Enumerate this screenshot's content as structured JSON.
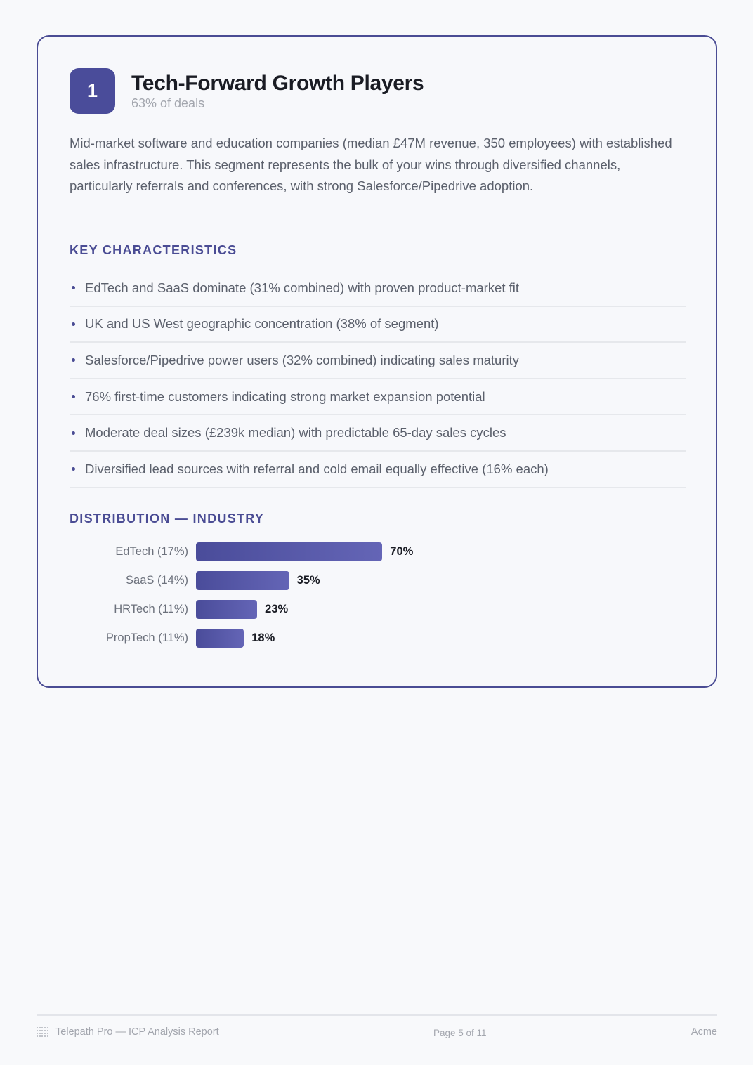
{
  "segment": {
    "number": "1",
    "title": "Tech-Forward Growth Players",
    "share": "63% of deals",
    "description": "Mid-market software and education companies (median £47M revenue, 350 employees) with established sales infrastructure. This segment represents the bulk of your wins through diversified channels, particularly referrals and conferences, with strong Salesforce/Pipedrive adoption."
  },
  "key_characteristics": {
    "heading": "KEY CHARACTERISTICS",
    "items": [
      "EdTech and SaaS dominate (31% combined) with proven product-market fit",
      "UK and US West geographic concentration (38% of segment)",
      "Salesforce/Pipedrive power users (32% combined) indicating sales maturity",
      "76% first-time customers indicating strong market expansion potential",
      "Moderate deal sizes (£239k median) with predictable 65-day sales cycles",
      "Diversified lead sources with referral and cold email equally effective (16% each)"
    ]
  },
  "distribution": {
    "heading": "DISTRIBUTION — INDUSTRY",
    "bars": [
      {
        "label": "EdTech (17%)",
        "value": 70,
        "value_label": "70%"
      },
      {
        "label": "SaaS (14%)",
        "value": 35,
        "value_label": "35%"
      },
      {
        "label": "HRTech (11%)",
        "value": 23,
        "value_label": "23%"
      },
      {
        "label": "PropTech (11%)",
        "value": 18,
        "value_label": "18%"
      }
    ]
  },
  "chart_data": {
    "type": "bar",
    "orientation": "horizontal",
    "title": "DISTRIBUTION — INDUSTRY",
    "categories": [
      "EdTech (17%)",
      "SaaS (14%)",
      "HRTech (11%)",
      "PropTech (11%)"
    ],
    "values": [
      70,
      35,
      23,
      18
    ],
    "value_labels": [
      "70%",
      "35%",
      "23%",
      "18%"
    ],
    "xlabel": "",
    "ylabel": "",
    "xlim": [
      0,
      100
    ],
    "grid": false,
    "legend": null
  },
  "colors": {
    "accent": "#4a4c94",
    "badge": "#4a4c9a",
    "bar_start": "#4a4c9a",
    "bar_end": "#6465b6"
  },
  "footer": {
    "brand_icon": "dot-grid-logo-icon",
    "report_title": "Telepath Pro — ICP Analysis Report",
    "page_indicator": "Page 5 of 11",
    "client": "Acme"
  }
}
